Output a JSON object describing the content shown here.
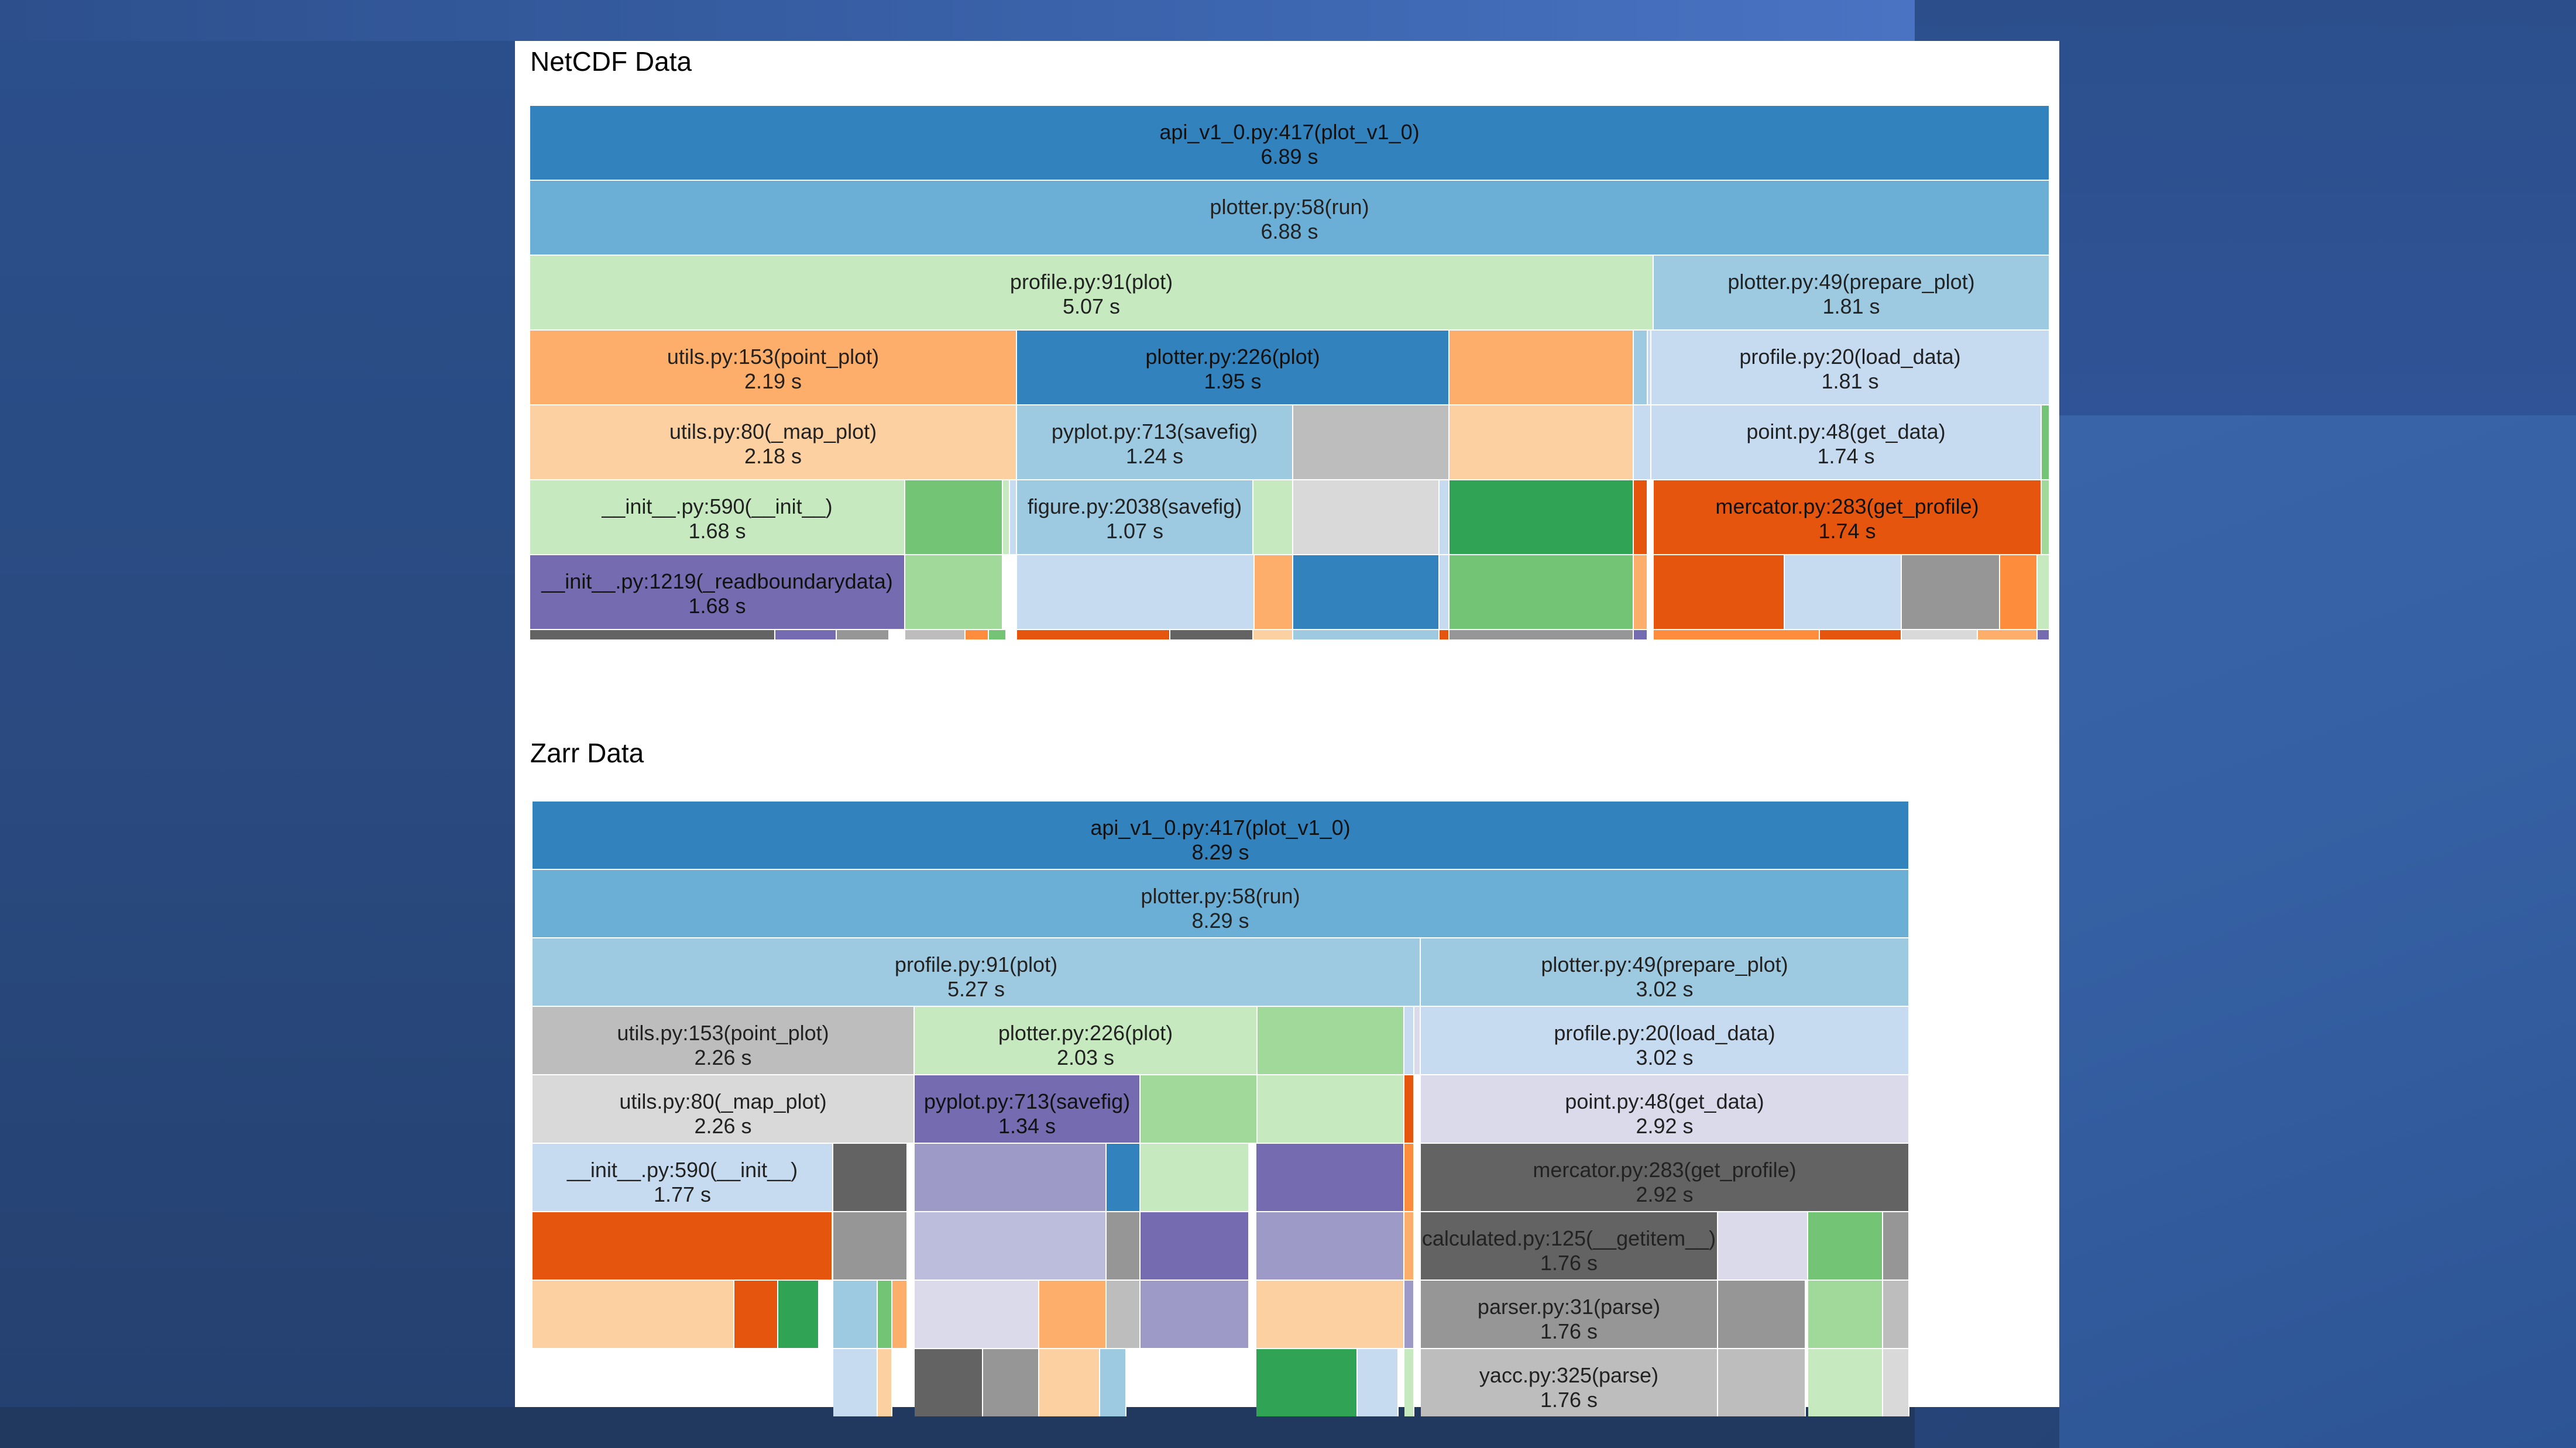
{
  "sections": [
    {
      "title": "NetCDF Data",
      "frames": [
        {
          "name": "api_v1_0.py:417(plot_v1_0)",
          "time": "6.89 s"
        },
        {
          "name": "plotter.py:58(run)",
          "time": "6.88 s"
        },
        {
          "name": "profile.py:91(plot)",
          "time": "5.07 s"
        },
        {
          "name": "plotter.py:49(prepare_plot)",
          "time": "1.81 s"
        },
        {
          "name": "utils.py:153(point_plot)",
          "time": "2.19 s"
        },
        {
          "name": "plotter.py:226(plot)",
          "time": "1.95 s"
        },
        {
          "name": "profile.py:20(load_data)",
          "time": "1.81 s"
        },
        {
          "name": "utils.py:80(_map_plot)",
          "time": "2.18 s"
        },
        {
          "name": "pyplot.py:713(savefig)",
          "time": "1.24 s"
        },
        {
          "name": "point.py:48(get_data)",
          "time": "1.74 s"
        },
        {
          "name": "__init__.py:590(__init__)",
          "time": "1.68 s"
        },
        {
          "name": "figure.py:2038(savefig)",
          "time": "1.07 s"
        },
        {
          "name": "mercator.py:283(get_profile)",
          "time": "1.74 s"
        },
        {
          "name": "__init__.py:1219(_readboundarydata)",
          "time": "1.68 s"
        }
      ]
    },
    {
      "title": "Zarr Data",
      "frames": [
        {
          "name": "api_v1_0.py:417(plot_v1_0)",
          "time": "8.29 s"
        },
        {
          "name": "plotter.py:58(run)",
          "time": "8.29 s"
        },
        {
          "name": "profile.py:91(plot)",
          "time": "5.27 s"
        },
        {
          "name": "plotter.py:49(prepare_plot)",
          "time": "3.02 s"
        },
        {
          "name": "utils.py:153(point_plot)",
          "time": "2.26 s"
        },
        {
          "name": "plotter.py:226(plot)",
          "time": "2.03 s"
        },
        {
          "name": "profile.py:20(load_data)",
          "time": "3.02 s"
        },
        {
          "name": "utils.py:80(_map_plot)",
          "time": "2.26 s"
        },
        {
          "name": "pyplot.py:713(savefig)",
          "time": "1.34 s"
        },
        {
          "name": "point.py:48(get_data)",
          "time": "2.92 s"
        },
        {
          "name": "__init__.py:590(__init__)",
          "time": "1.77 s"
        },
        {
          "name": "mercator.py:283(get_profile)",
          "time": "2.92 s"
        },
        {
          "name": "calculated.py:125(__getitem__)",
          "time": "1.76 s"
        },
        {
          "name": "parser.py:31(parse)",
          "time": "1.76 s"
        },
        {
          "name": "yacc.py:325(parse)",
          "time": "1.76 s"
        }
      ]
    }
  ],
  "colors": {
    "dark_blue": "#3182bd",
    "mid_blue": "#6baed6",
    "light_blue": "#9ecae1",
    "pale_blue": "#c6dbef",
    "dark_orange": "#e6550d",
    "orange": "#fd8d3c",
    "light_orange": "#fdae6b",
    "pale_orange": "#fdd0a2",
    "dark_green": "#31a354",
    "green": "#74c476",
    "light_green": "#a1d99b",
    "pale_green": "#c7e9c0",
    "dark_purple": "#756bb1",
    "purple": "#9e9ac8",
    "light_purple": "#bcbddc",
    "pale_purple": "#dadaeb",
    "dark_gray": "#636363",
    "gray": "#969696",
    "light_gray": "#bdbdbd",
    "pale_gray": "#d9d9d9"
  }
}
